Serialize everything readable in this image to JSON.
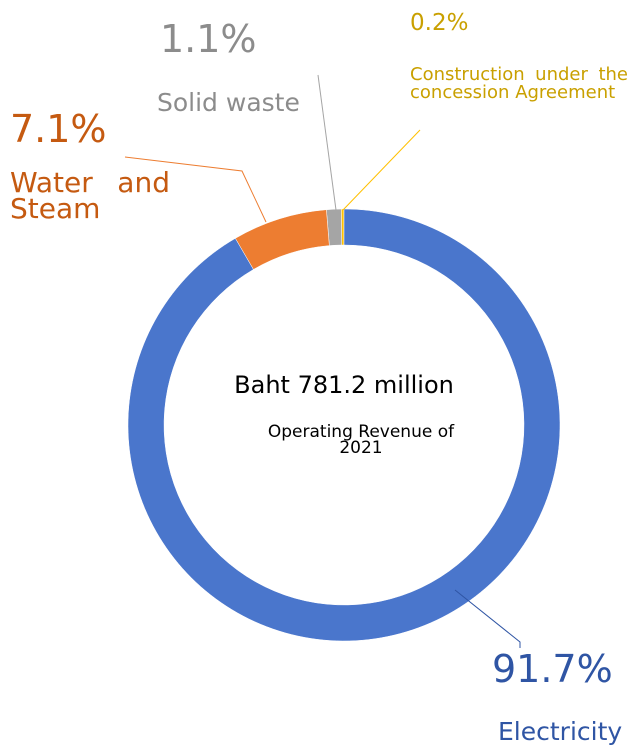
{
  "chart_data": {
    "type": "pie",
    "donut": true,
    "categories": [
      "Electricity",
      "Water and Steam",
      "Solid waste",
      "Construction under the concession Agreement"
    ],
    "values": [
      91.7,
      7.1,
      1.1,
      0.2
    ],
    "value_labels": [
      "91.7%",
      "7.1%",
      "1.1%",
      "0.2%"
    ],
    "colors": [
      "#4a76cc",
      "#ed7d31",
      "#a5a5a5",
      "#ffc000"
    ],
    "center_title": "Baht 781.2 million",
    "center_subtitle": "Operating Revenue of 2021"
  }
}
